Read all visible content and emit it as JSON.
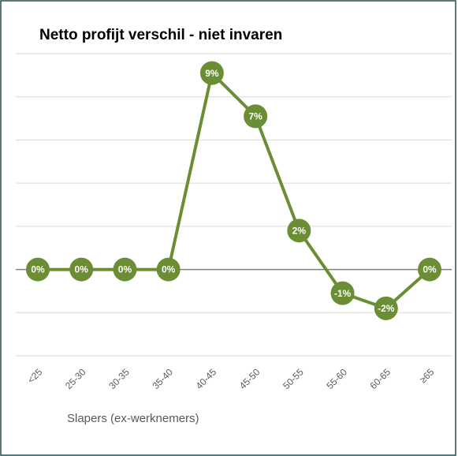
{
  "chart_data": {
    "type": "line",
    "title": "Netto profijt verschil - niet invaren",
    "x_label": "Slapers (ex-werknemers)",
    "categories": [
      "<25",
      "25-30",
      "30-35",
      "35-40",
      "40-45",
      "45-50",
      "50-55",
      "55-60",
      "60-65",
      "≥65"
    ],
    "series": [
      {
        "name": "Netto profijt verschil",
        "color": "#6b8e35",
        "values": [
          0,
          0,
          0,
          0,
          9.1,
          7.1,
          1.8,
          -1.1,
          -1.8,
          0
        ],
        "value_labels": [
          "0%",
          "0%",
          "0%",
          "0%",
          "9%",
          "7%",
          "2%",
          "-1%",
          "-2%",
          "0%"
        ]
      }
    ],
    "ylim": [
      -4,
      10
    ],
    "yticks": [
      -4,
      -2,
      0,
      2,
      4,
      6,
      8,
      10
    ],
    "grid": true
  }
}
